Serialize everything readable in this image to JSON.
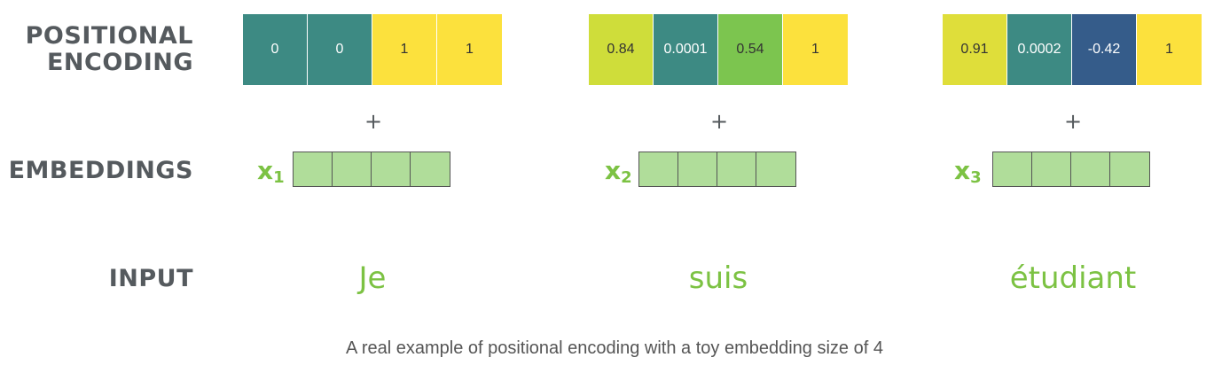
{
  "labels": {
    "positional_encoding": "POSITIONAL\nENCODING",
    "embeddings": "EMBEDDINGS",
    "input": "INPUT"
  },
  "colors": {
    "teal": "#3d8a83",
    "yellow": "#fce13d",
    "lime": "#cfdd3a",
    "green": "#7cc54f",
    "blue": "#355c8a",
    "embedding_cell": "#b0dd9a",
    "accent_green": "#7cc243"
  },
  "columns": [
    {
      "encoding": [
        {
          "value": "0",
          "color": "#3d8a83",
          "text_color": "#ffffff"
        },
        {
          "value": "0",
          "color": "#3d8a83",
          "text_color": "#ffffff"
        },
        {
          "value": "1",
          "color": "#fce13d",
          "text_color": "#333333"
        },
        {
          "value": "1",
          "color": "#fce13d",
          "text_color": "#333333"
        }
      ],
      "plus": "+",
      "x_letter": "x",
      "x_index": "1",
      "word": "Je"
    },
    {
      "encoding": [
        {
          "value": "0.84",
          "color": "#cfdd3a",
          "text_color": "#333333"
        },
        {
          "value": "0.0001",
          "color": "#3d8a83",
          "text_color": "#ffffff"
        },
        {
          "value": "0.54",
          "color": "#7cc54f",
          "text_color": "#333333"
        },
        {
          "value": "1",
          "color": "#fce13d",
          "text_color": "#333333"
        }
      ],
      "plus": "+",
      "x_letter": "x",
      "x_index": "2",
      "word": "suis"
    },
    {
      "encoding": [
        {
          "value": "0.91",
          "color": "#dfde3a",
          "text_color": "#333333"
        },
        {
          "value": "0.0002",
          "color": "#3d8a83",
          "text_color": "#ffffff"
        },
        {
          "value": "-0.42",
          "color": "#355c8a",
          "text_color": "#ffffff"
        },
        {
          "value": "1",
          "color": "#fce13d",
          "text_color": "#333333"
        }
      ],
      "plus": "+",
      "x_letter": "x",
      "x_index": "3",
      "word": "étudiant"
    }
  ],
  "caption": "A real example of positional encoding with a toy embedding size of 4"
}
